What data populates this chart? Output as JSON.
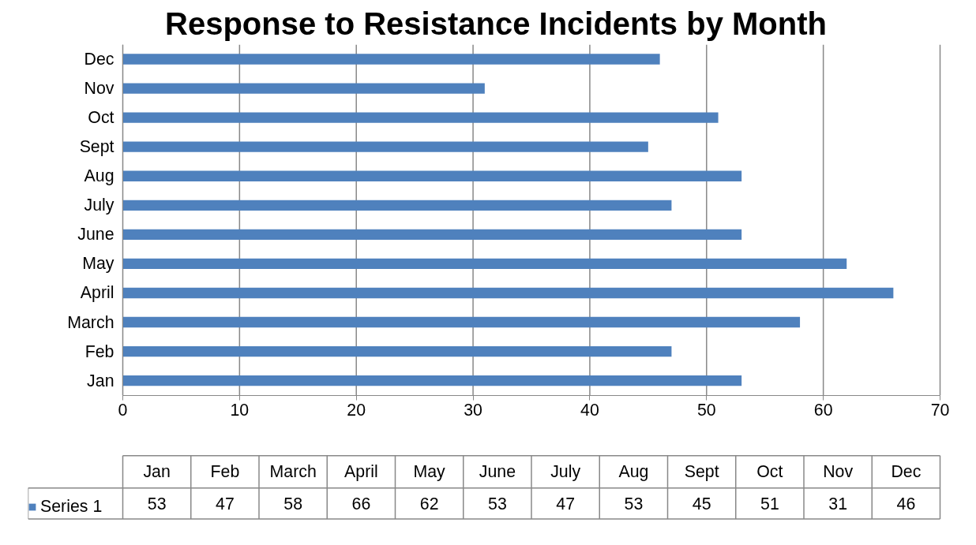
{
  "chart_data": {
    "type": "bar",
    "orientation": "horizontal",
    "title": "Response to Resistance Incidents by Month",
    "categories": [
      "Dec",
      "Nov",
      "Oct",
      "Sept",
      "Aug",
      "July",
      "June",
      "May",
      "April",
      "March",
      "Feb",
      "Jan"
    ],
    "series": [
      {
        "name": "Series 1",
        "color": "#4f81bd",
        "values": [
          46,
          31,
          51,
          45,
          53,
          47,
          53,
          62,
          66,
          58,
          47,
          53
        ]
      }
    ],
    "xlim": [
      0,
      70
    ],
    "xticks": [
      0,
      10,
      20,
      30,
      40,
      50,
      60,
      70
    ],
    "grid": "x",
    "legend": "bottom",
    "annotations": [
      "53",
      "47",
      "58",
      "66",
      "62",
      "53",
      "47",
      "53",
      "45",
      "51",
      "31",
      "46"
    ]
  }
}
